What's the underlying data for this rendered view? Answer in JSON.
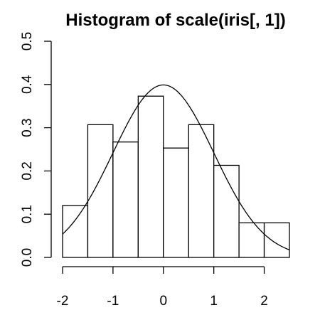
{
  "chart_data": {
    "type": "bar",
    "title": "Histogram of scale(iris[, 1])",
    "xlabel": "",
    "ylabel": "",
    "bins": [
      {
        "x0": -2.0,
        "x1": -1.5,
        "density": 0.12
      },
      {
        "x0": -1.5,
        "x1": -1.0,
        "density": 0.307
      },
      {
        "x0": -1.0,
        "x1": -0.5,
        "density": 0.267
      },
      {
        "x0": -0.5,
        "x1": 0.0,
        "density": 0.373
      },
      {
        "x0": 0.0,
        "x1": 0.5,
        "density": 0.253
      },
      {
        "x0": 0.5,
        "x1": 1.0,
        "density": 0.307
      },
      {
        "x0": 1.0,
        "x1": 1.5,
        "density": 0.213
      },
      {
        "x0": 1.5,
        "x1": 2.0,
        "density": 0.08
      },
      {
        "x0": 2.0,
        "x1": 2.5,
        "density": 0.08
      }
    ],
    "overlay_curve": {
      "type": "normal-density",
      "mean": 0,
      "sd": 1
    },
    "xlim": [
      -2,
      2.5
    ],
    "ylim": [
      0,
      0.5
    ],
    "x_ticks": [
      {
        "value": -2,
        "label": "-2"
      },
      {
        "value": -1,
        "label": "-1"
      },
      {
        "value": 0,
        "label": "0"
      },
      {
        "value": 1,
        "label": "1"
      },
      {
        "value": 2,
        "label": "2"
      }
    ],
    "y_ticks": [
      {
        "value": 0.0,
        "label": "0.0"
      },
      {
        "value": 0.1,
        "label": "0.1"
      },
      {
        "value": 0.2,
        "label": "0.2"
      },
      {
        "value": 0.3,
        "label": "0.3"
      },
      {
        "value": 0.4,
        "label": "0.4"
      },
      {
        "value": 0.5,
        "label": "0.5"
      }
    ],
    "grid": false,
    "legend": "none",
    "colors": {
      "bar_fill": "#ffffff",
      "stroke": "#000000"
    }
  }
}
